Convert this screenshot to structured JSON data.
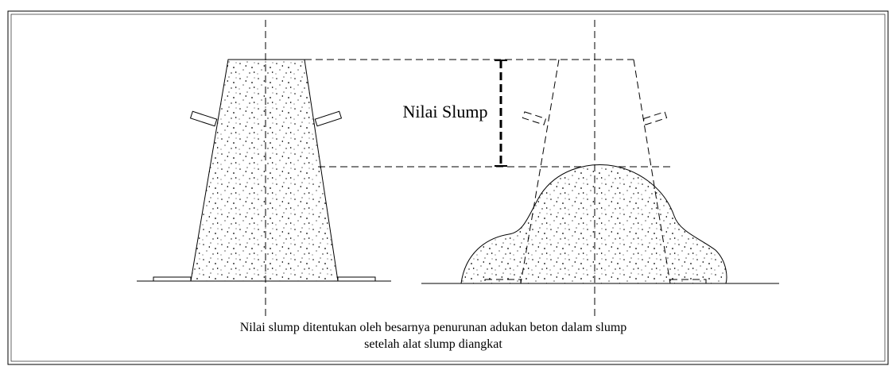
{
  "label": "Nilai Slump",
  "caption": [
    "Nilai slump ditentukan oleh besarnya penurunan adukan beton dalam slump",
    "setelah alat slump diangkat"
  ]
}
